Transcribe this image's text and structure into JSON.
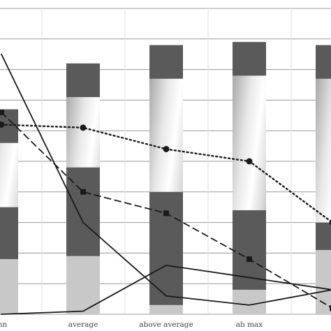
{
  "chart_data": {
    "type": "bar",
    "categories": [
      "mn",
      "average",
      "above average",
      "ab max",
      ""
    ],
    "ylim": [
      0,
      100
    ],
    "grid": true,
    "bars": [
      {
        "dark_top": 67,
        "light": 35,
        "dark_bottom": 18
      },
      {
        "dark_top": 82,
        "light": 48,
        "dark_bottom": 19
      },
      {
        "dark_top": 88,
        "light": 40,
        "dark_bottom": 3
      },
      {
        "dark_top": 89,
        "light": 34,
        "dark_bottom": 8
      },
      {
        "dark_top": 88,
        "light": 30,
        "dark_bottom": 21
      }
    ],
    "series": [
      {
        "line": "dotted",
        "marker": "circle",
        "values": [
          62,
          61,
          54,
          50,
          30
        ]
      },
      {
        "line": "dashed",
        "marker": "square",
        "values": [
          66,
          40,
          33,
          18,
          2
        ]
      },
      {
        "line": "solid",
        "marker": "none",
        "values": [
          85,
          30,
          6,
          3,
          8
        ]
      },
      {
        "line": "solid",
        "marker": "none",
        "values": [
          0,
          1,
          16,
          12,
          8
        ]
      }
    ],
    "colors": {
      "bar_dark": "#5a5a5a",
      "bar_light": "#c8c8c8",
      "line": "#1a1a1a",
      "grid": "#9a9a9a"
    }
  }
}
